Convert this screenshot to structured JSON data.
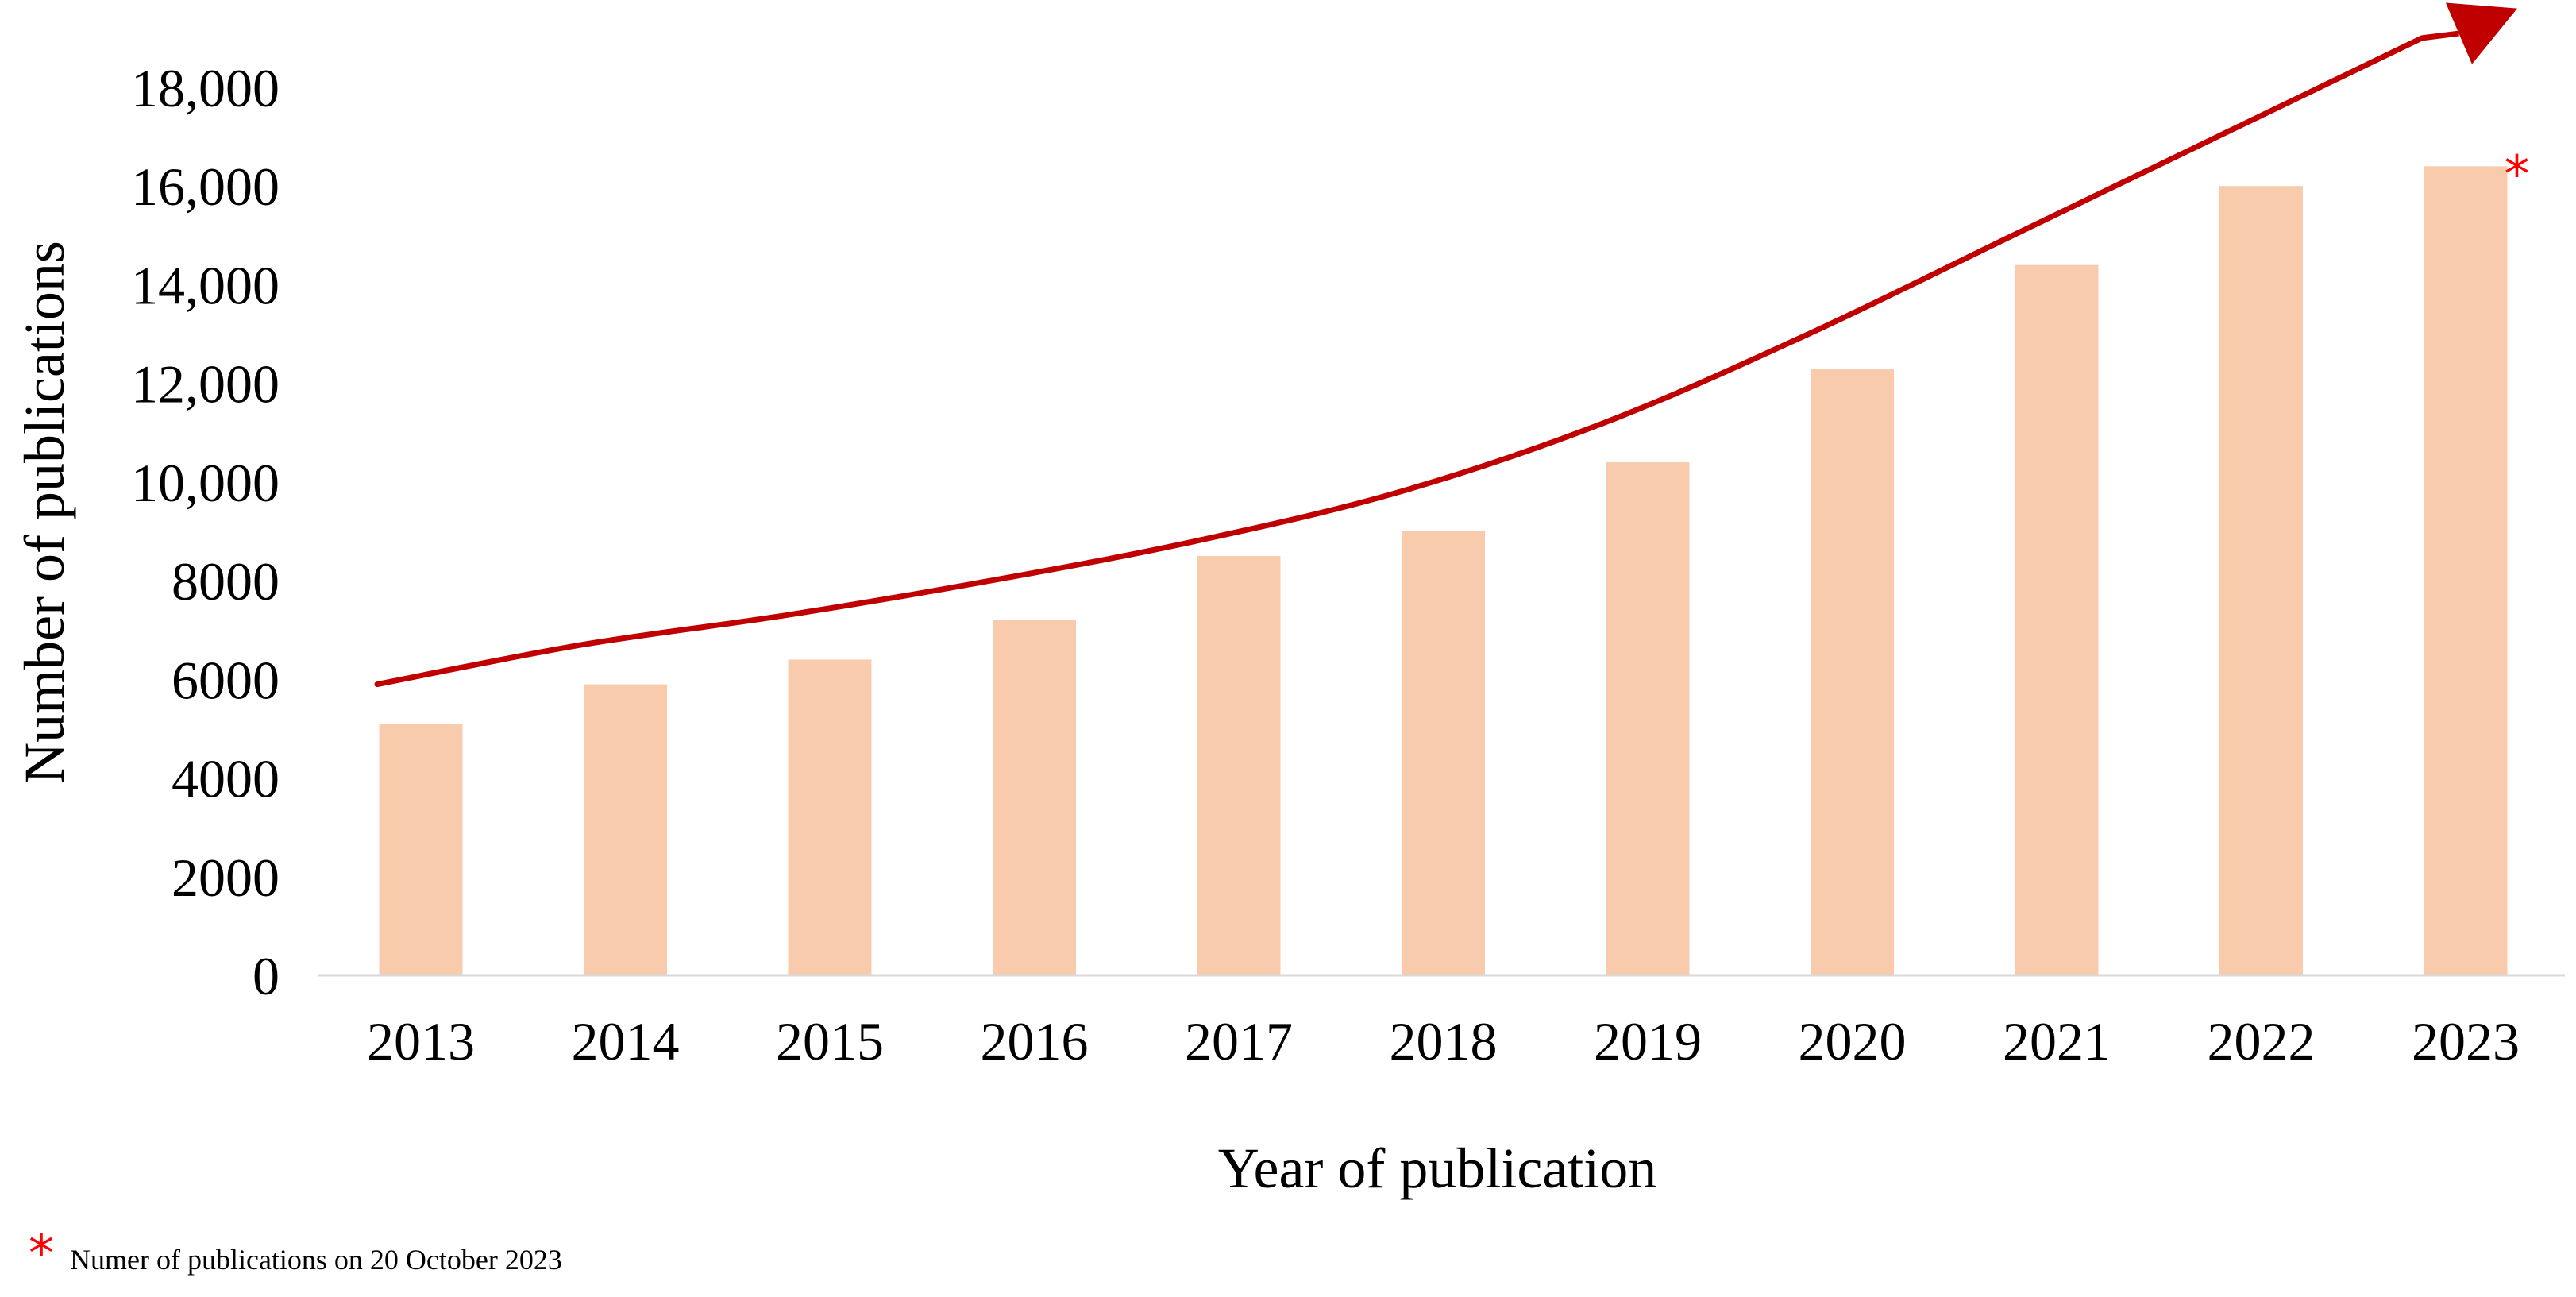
{
  "chart_data": {
    "type": "bar",
    "title": "",
    "xlabel": "Year of publication",
    "ylabel": "Number of publications",
    "categories": [
      "2013",
      "2014",
      "2015",
      "2016",
      "2017",
      "2018",
      "2019",
      "2020",
      "2021",
      "2022",
      "2023"
    ],
    "values": [
      5100,
      5900,
      6400,
      7200,
      8500,
      9000,
      10400,
      12300,
      14400,
      16000,
      16400
    ],
    "ylim": [
      0,
      18000
    ],
    "yticks": [
      0,
      2000,
      4000,
      6000,
      8000,
      10000,
      12000,
      14000,
      16000,
      18000
    ],
    "ytick_labels": [
      "0",
      "2000",
      "4000",
      "6000",
      "8000",
      "10,000",
      "12,000",
      "14,000",
      "16,000",
      "18,000"
    ],
    "grid": false,
    "bar_color": "#f8cbad",
    "trend_arrow": {
      "color": "#c00000",
      "values": [
        5900,
        6700,
        7300,
        8000,
        8800,
        9800,
        11200,
        13000,
        15000,
        17000,
        19000
      ],
      "arrow_tip_value": 19600
    },
    "annotations": [
      {
        "category": "2023",
        "marker": "*",
        "marker_color": "#ff0000"
      }
    ],
    "footnote": {
      "marker": "*",
      "marker_color": "#ff0000",
      "text": "Numer of publications on 20 October 2023"
    }
  }
}
